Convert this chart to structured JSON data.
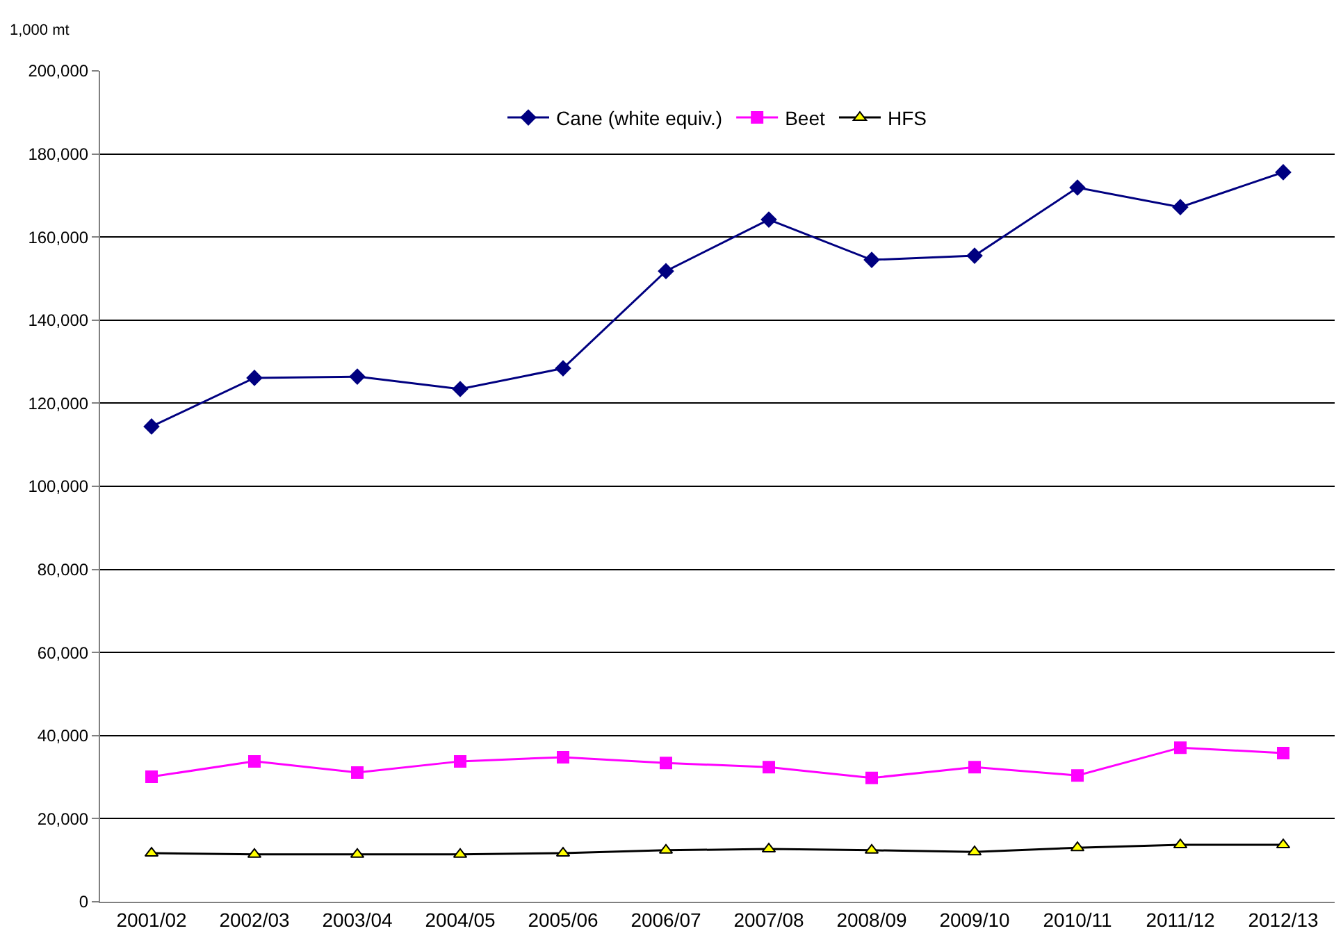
{
  "chart_data": {
    "type": "line",
    "ylabel": "1,000 mt",
    "categories": [
      "2001/02",
      "2002/03",
      "2003/04",
      "2004/05",
      "2005/06",
      "2006/07",
      "2007/08",
      "2008/09",
      "2009/10",
      "2010/11",
      "2011/12",
      "2012/13"
    ],
    "series": [
      {
        "name": "Cane (white equiv.)",
        "color": "#000080",
        "marker": "diamond",
        "values": [
          114400,
          126100,
          126400,
          123400,
          128400,
          151800,
          164200,
          154500,
          155500,
          171900,
          167200,
          175600
        ]
      },
      {
        "name": "Beet",
        "color": "#ff00ff",
        "marker": "square",
        "values": [
          30100,
          33800,
          31100,
          33800,
          34800,
          33400,
          32400,
          29800,
          32400,
          30400,
          37100,
          35800
        ]
      },
      {
        "name": "HFS",
        "color": "#000000",
        "marker": "triangle",
        "values": [
          11700,
          11400,
          11400,
          11400,
          11700,
          12400,
          12700,
          12400,
          12000,
          13000,
          13700,
          13700
        ]
      }
    ],
    "ylim": [
      0,
      200000
    ],
    "yticks": [
      {
        "value": 0,
        "label": "0"
      },
      {
        "value": 20000,
        "label": "20,000"
      },
      {
        "value": 40000,
        "label": "40,000"
      },
      {
        "value": 60000,
        "label": "60,000"
      },
      {
        "value": 80000,
        "label": "80,000"
      },
      {
        "value": 100000,
        "label": "100,000"
      },
      {
        "value": 120000,
        "label": "120,000"
      },
      {
        "value": 140000,
        "label": "140,000"
      },
      {
        "value": 160000,
        "label": "160,000"
      },
      {
        "value": 180000,
        "label": "180,000"
      },
      {
        "value": 200000,
        "label": "200,000"
      }
    ],
    "grid": "y",
    "legend": "top",
    "line_style": "solid"
  }
}
